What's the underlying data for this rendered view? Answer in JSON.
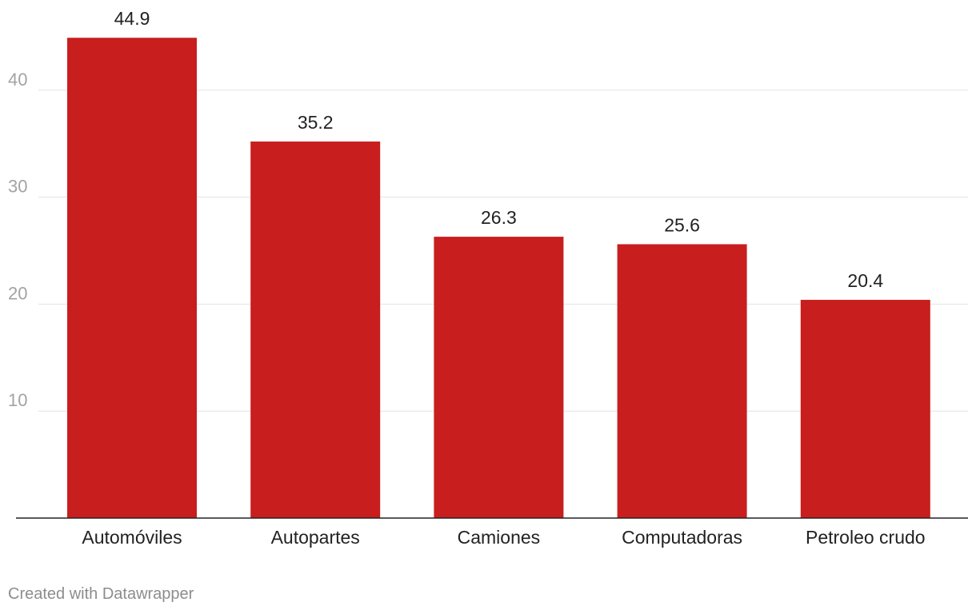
{
  "chart_data": {
    "type": "bar",
    "categories": [
      "Automóviles",
      "Autopartes",
      "Camiones",
      "Computadoras",
      "Petroleo crudo"
    ],
    "values": [
      44.9,
      35.2,
      26.3,
      25.6,
      20.4
    ],
    "value_labels": [
      "44.9",
      "35.2",
      "26.3",
      "25.6",
      "20.4"
    ],
    "y_ticks": [
      10,
      20,
      30,
      40
    ],
    "y_tick_labels": [
      "10",
      "20",
      "30",
      "40"
    ],
    "ylim": [
      0,
      48
    ],
    "grid": true,
    "bar_color": "#c81e1e",
    "title": "",
    "xlabel": "",
    "ylabel": ""
  },
  "footer": {
    "credit": "Created with Datawrapper"
  }
}
